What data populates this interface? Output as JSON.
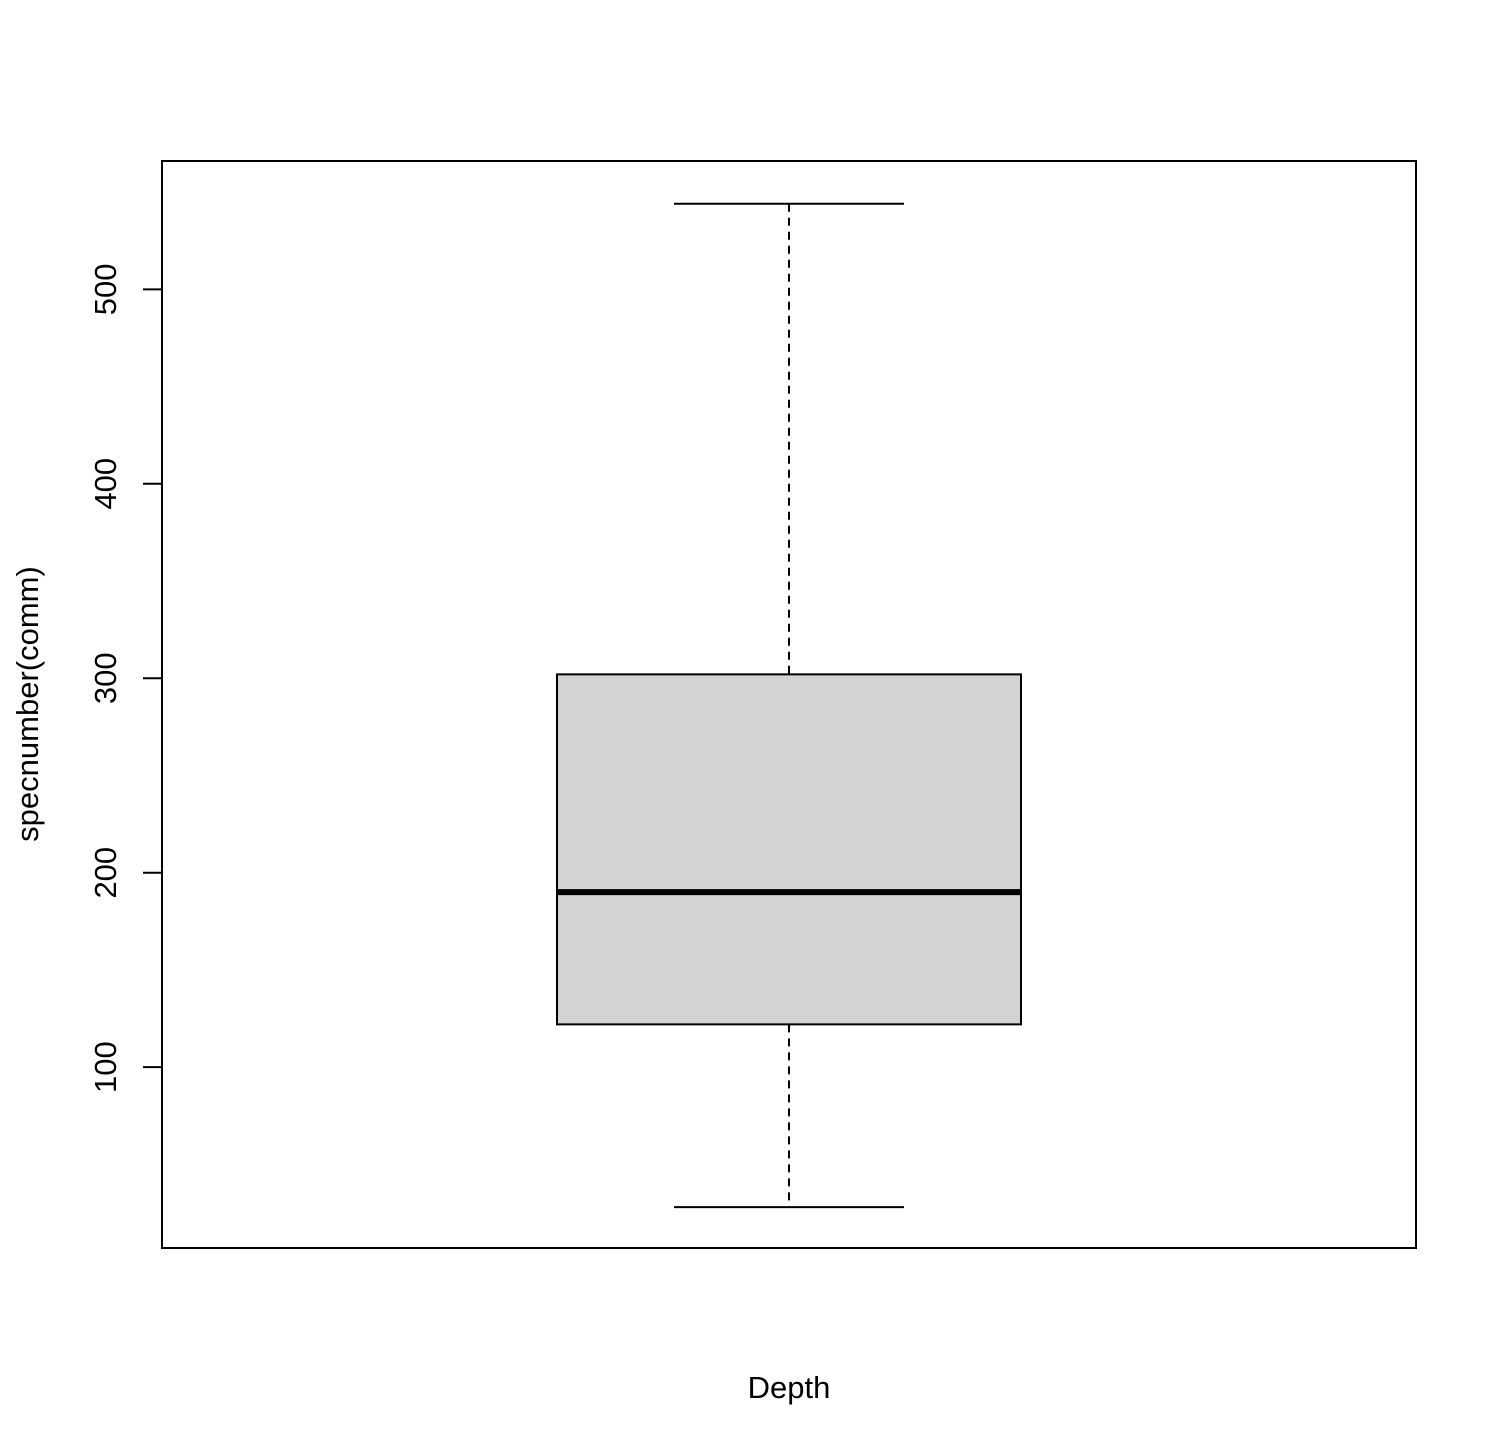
{
  "chart_data": {
    "type": "box",
    "title": "",
    "xlabel": "Depth",
    "ylabel": "specnumber(comm)",
    "ylim": [
      7,
      566
    ],
    "yticks": [
      "100",
      "200",
      "300",
      "400",
      "500"
    ],
    "grid": false,
    "box": {
      "min": 28,
      "q1": 122,
      "median": 190,
      "q3": 302,
      "max": 544
    },
    "colors": {
      "box_fill": "#d3d3d3",
      "stroke": "#000000"
    }
  }
}
